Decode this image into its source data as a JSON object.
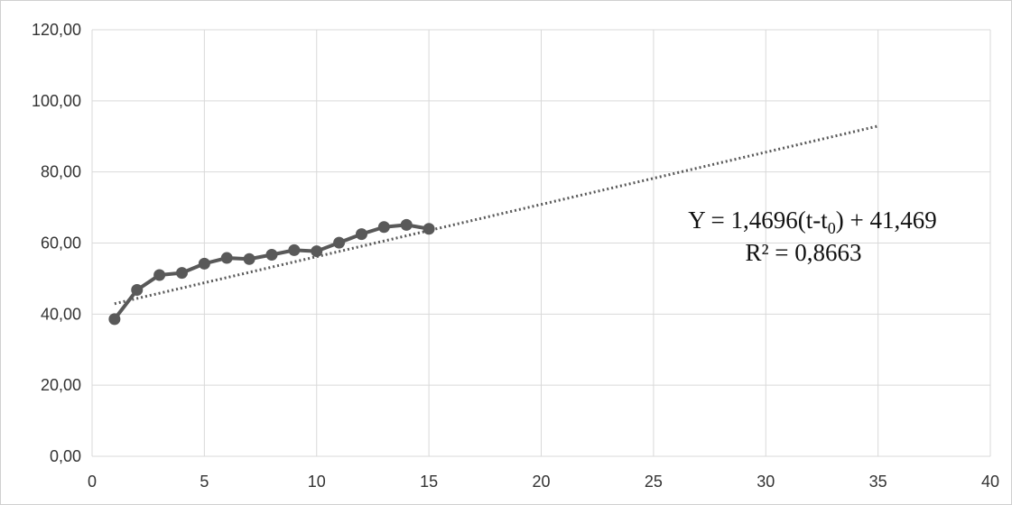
{
  "chart_data": {
    "type": "scatter",
    "title": "",
    "xlabel": "",
    "ylabel": "",
    "xlim": [
      0,
      40
    ],
    "ylim": [
      0,
      120
    ],
    "x_ticks": [
      0,
      5,
      10,
      15,
      20,
      25,
      30,
      35,
      40
    ],
    "x_tick_labels": [
      "0",
      "5",
      "10",
      "15",
      "20",
      "25",
      "30",
      "35",
      "40"
    ],
    "y_ticks": [
      0,
      20,
      40,
      60,
      80,
      100,
      120
    ],
    "y_tick_labels": [
      "0,00",
      "20,00",
      "40,00",
      "60,00",
      "80,00",
      "100,00",
      "120,00"
    ],
    "grid": true,
    "legend": "none",
    "series": [
      {
        "style": "line-with-markers",
        "color": "#595959",
        "x": [
          1,
          2,
          3,
          4,
          5,
          6,
          7,
          8,
          9,
          10,
          11,
          12,
          13,
          14,
          15
        ],
        "y": [
          38.6,
          46.8,
          51.0,
          51.6,
          54.2,
          55.8,
          55.5,
          56.7,
          58.0,
          57.7,
          60.1,
          62.5,
          64.5,
          65.1,
          64.0
        ]
      }
    ],
    "trendline": {
      "type": "linear",
      "style": "dotted",
      "color": "#595959",
      "slope": 1.4696,
      "intercept": 41.469,
      "x_range": [
        1,
        35
      ],
      "equation_parts": {
        "prefix": "Y = 1,4696(t-t",
        "subscript": "0",
        "suffix": ")  + 41,469"
      },
      "r2_label": "R² = 0,8663"
    }
  }
}
